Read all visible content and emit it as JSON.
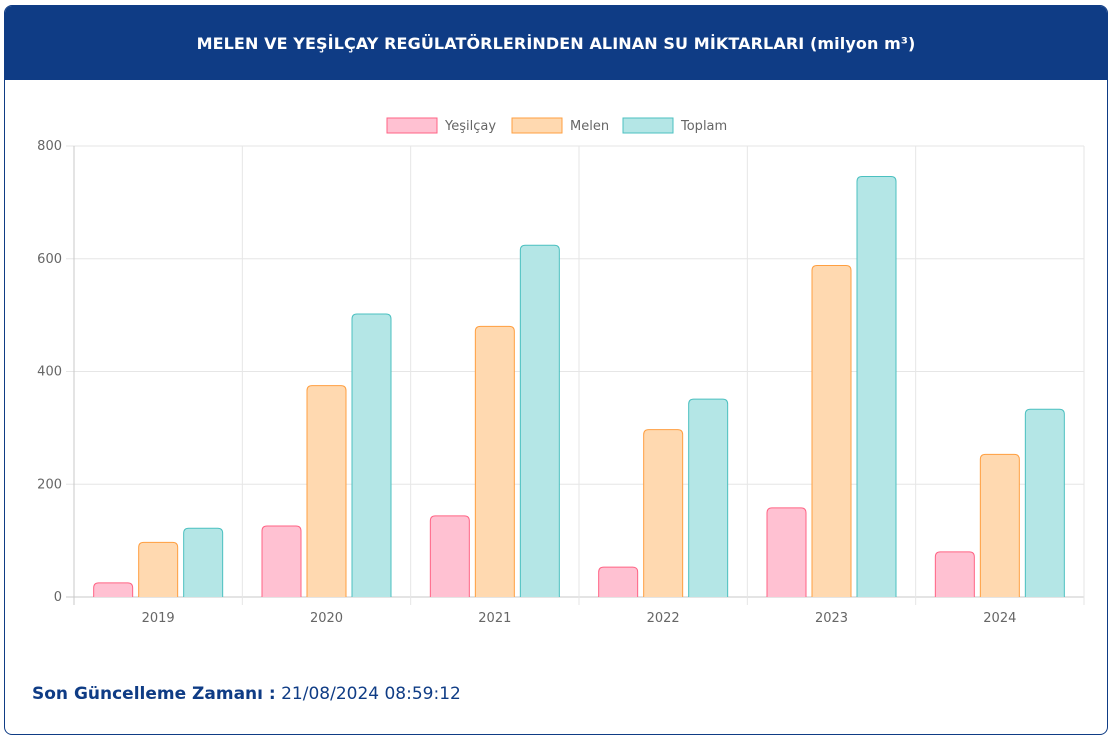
{
  "header": {
    "title": "MELEN VE YEŞİLÇAY REGÜLATÖRLERİNDEN ALINAN SU MİKTARLARI (milyon m³)"
  },
  "footer": {
    "label": "Son Güncelleme Zamanı :",
    "value": "21/08/2024 08:59:12"
  },
  "colors": {
    "header_bg": "#0f3c85",
    "yesilcay_fill": "#ffc1d2",
    "yesilcay_stroke": "#ff6384",
    "melen_fill": "#ffd9b0",
    "melen_stroke": "#ff9f40",
    "toplam_fill": "#b4e6e6",
    "toplam_stroke": "#4bc0c0"
  },
  "chart_data": {
    "type": "bar",
    "categories": [
      "2019",
      "2020",
      "2021",
      "2022",
      "2023",
      "2024"
    ],
    "series": [
      {
        "name": "Yeşilçay",
        "values": [
          25,
          126,
          144,
          53,
          158,
          80
        ]
      },
      {
        "name": "Melen",
        "values": [
          97,
          375,
          480,
          297,
          588,
          253
        ]
      },
      {
        "name": "Toplam",
        "values": [
          122,
          502,
          624,
          351,
          746,
          333
        ]
      }
    ],
    "ylim": [
      0,
      800
    ],
    "yticks": [
      "0",
      "200",
      "400",
      "600",
      "800"
    ],
    "grid": true,
    "legend": "top-center"
  }
}
